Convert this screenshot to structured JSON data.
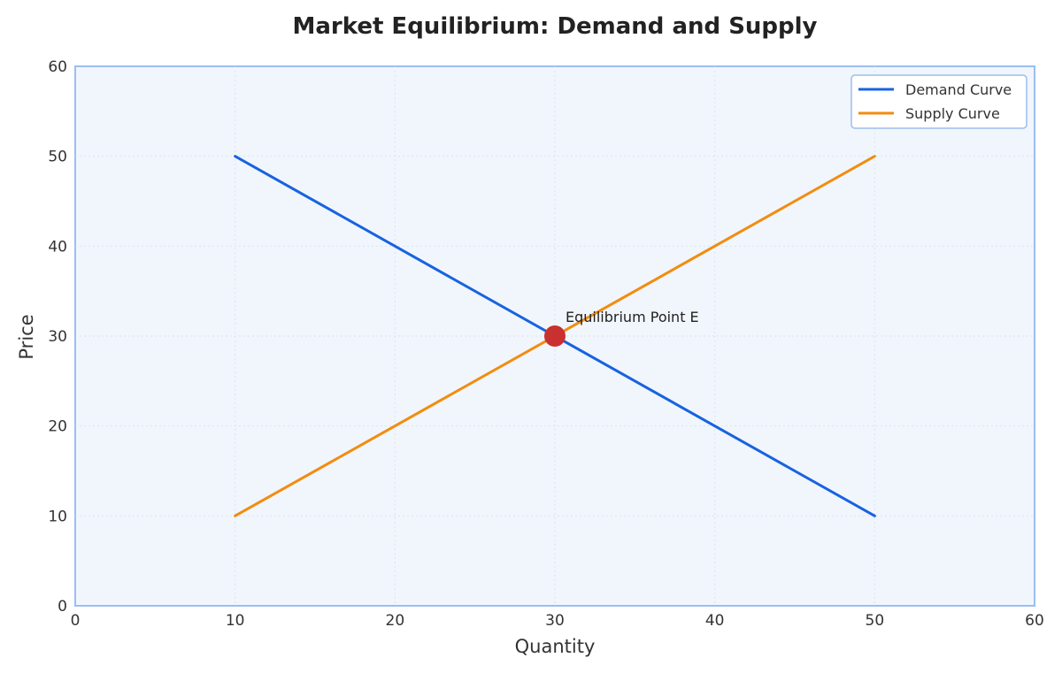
{
  "chart_data": {
    "type": "line",
    "title": "Market Equilibrium: Demand and Supply",
    "xlabel": "Quantity",
    "ylabel": "Price",
    "xlim": [
      0,
      60
    ],
    "ylim": [
      0,
      60
    ],
    "xticks": [
      0,
      10,
      20,
      30,
      40,
      50,
      60
    ],
    "yticks": [
      0,
      10,
      20,
      30,
      40,
      50,
      60
    ],
    "grid": true,
    "legend_position": "top-right",
    "series": [
      {
        "name": "Demand Curve",
        "color": "#1763e0",
        "x": [
          10,
          50
        ],
        "y": [
          50,
          10
        ]
      },
      {
        "name": "Supply Curve",
        "color": "#f28c0f",
        "x": [
          10,
          50
        ],
        "y": [
          10,
          50
        ]
      }
    ],
    "annotations": [
      {
        "text": "Equilibrium Point E",
        "x": 30,
        "y": 30,
        "marker_color": "#c93030"
      }
    ],
    "colors": {
      "plot_background": "#f1f6fd",
      "plot_border": "#9bbef0",
      "grid": "#d8e3f2"
    }
  }
}
